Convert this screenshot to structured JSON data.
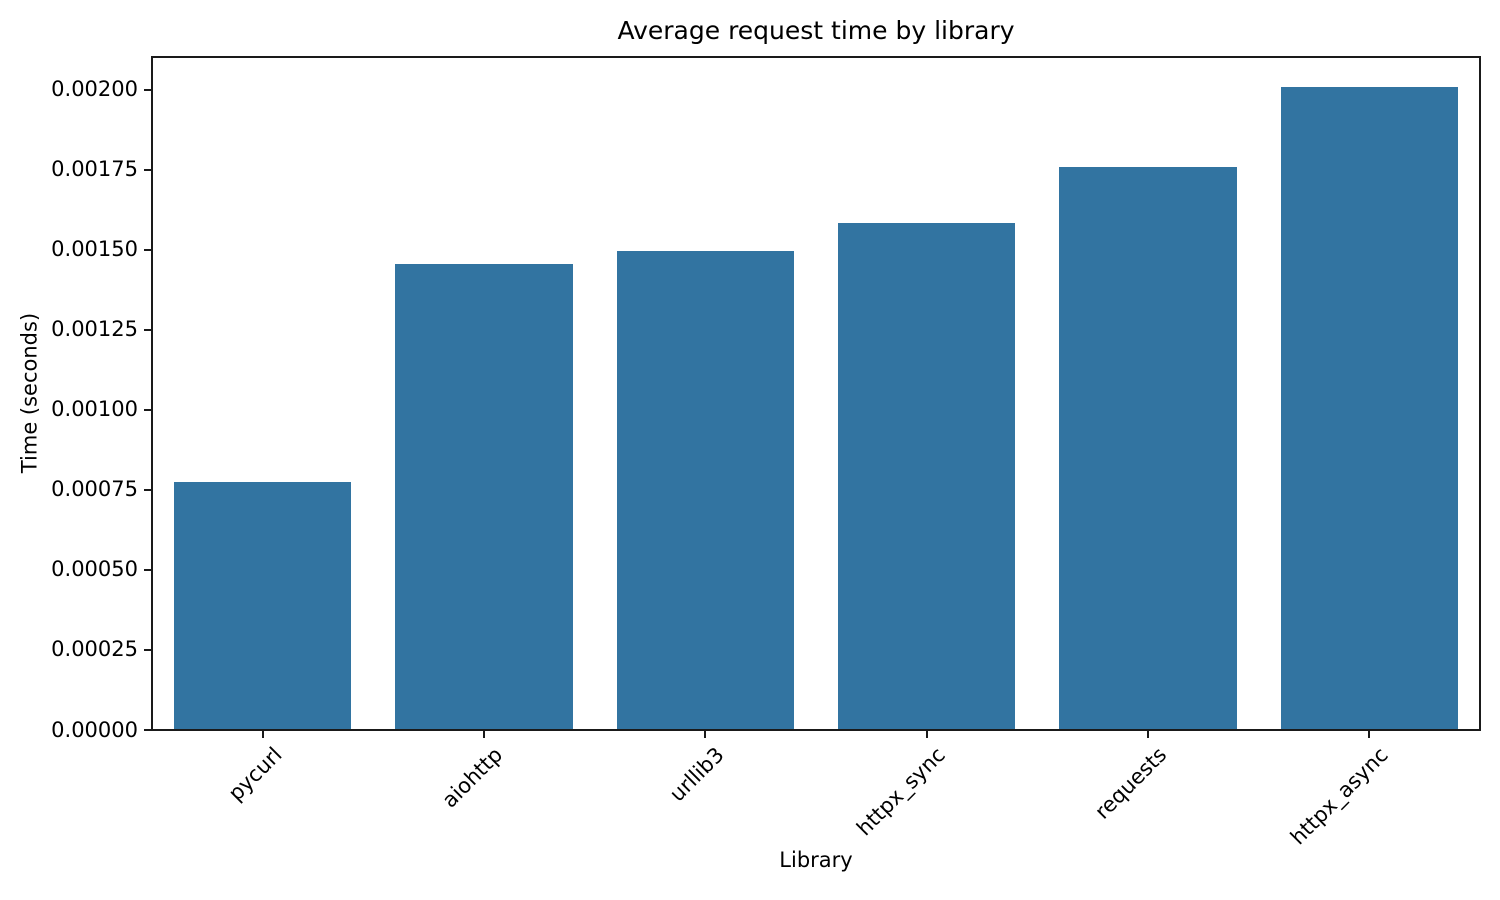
{
  "chart_data": {
    "type": "bar",
    "title": "Average request time by library",
    "xlabel": "Library",
    "ylabel": "Time (seconds)",
    "categories": [
      "pycurl",
      "aiohttp",
      "urllib3",
      "httpx_sync",
      "requests",
      "httpx_async"
    ],
    "values": [
      0.000775,
      0.001455,
      0.001495,
      0.001582,
      0.001758,
      0.002008
    ],
    "ylim": [
      0,
      0.002102
    ],
    "yticks": [
      0,
      0.00025,
      0.0005,
      0.00075,
      0.001,
      0.00125,
      0.0015,
      0.00175,
      0.002
    ],
    "ytick_labels": [
      "0.00000",
      "0.00025",
      "0.00050",
      "0.00075",
      "0.00100",
      "0.00125",
      "0.00150",
      "0.00175",
      "0.00200"
    ],
    "grid": false,
    "legend_position": "none",
    "bar_color": "#3274a1",
    "spine_color": "#1a1a1a",
    "x_tick_rotation_deg": 45
  }
}
